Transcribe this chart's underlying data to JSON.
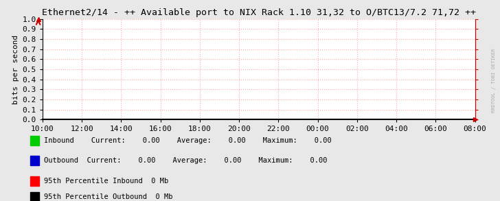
{
  "title": "Ethernet2/14 - ++ Available port to NIX Rack 1.10 31,32 to O/BTC13/7.2 71,72 ++",
  "ylabel": "bits per second",
  "x_tick_labels": [
    "10:00",
    "12:00",
    "14:00",
    "16:00",
    "18:00",
    "20:00",
    "22:00",
    "00:00",
    "02:00",
    "04:00",
    "06:00",
    "08:00"
  ],
  "y_tick_labels": [
    "0.0",
    "0.1",
    "0.2",
    "0.3",
    "0.4",
    "0.5",
    "0.6",
    "0.7",
    "0.8",
    "0.9",
    "1.0"
  ],
  "ylim": [
    0.0,
    1.0
  ],
  "xlim": [
    0,
    11
  ],
  "grid_color": "#ffaaaa",
  "bg_color": "#e8e8e8",
  "plot_bg_color": "#ffffff",
  "title_color": "#000000",
  "title_fontsize": 9.5,
  "tick_fontsize": 8,
  "ylabel_fontsize": 8,
  "legend1": [
    {
      "label": "Inbound ",
      "color": "#00cc00"
    },
    {
      "label": "Outbound",
      "color": "#0000cc"
    }
  ],
  "legend1_stats": [
    {
      "current": "0.00",
      "average": "0.00",
      "maximum": "0.00"
    },
    {
      "current": "0.00",
      "average": "0.00",
      "maximum": "0.00"
    }
  ],
  "legend2": [
    {
      "label": "95th Percentile Inbound  0 Mb",
      "color": "#ff0000"
    },
    {
      "label": "95th Percentile Outbound  0 Mb",
      "color": "#000000"
    }
  ],
  "watermark": "RRDTOOL / TOBI OETIKER",
  "arrow_color": "#cc0000",
  "right_axis_color": "#cc0000",
  "watermark_color": "#aaaaaa"
}
